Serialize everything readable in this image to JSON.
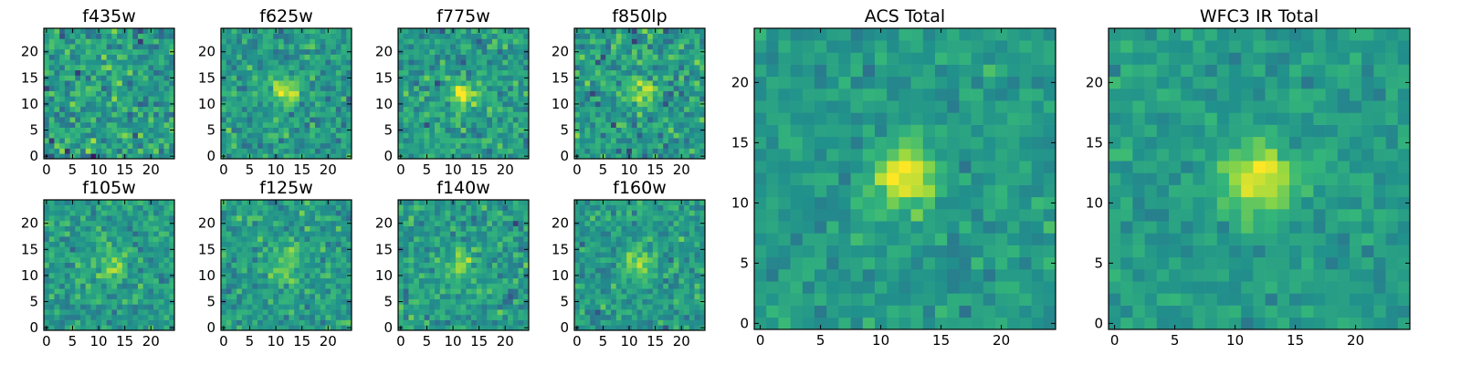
{
  "figure": {
    "colormap": [
      "#440154",
      "#31688e",
      "#21918c",
      "#35b779",
      "#90d743",
      "#fde725"
    ],
    "background": "#ffffff"
  },
  "chart_data": [
    {
      "type": "heatmap",
      "title": "f435w",
      "xlim": [
        -0.5,
        24.5
      ],
      "ylim": [
        -0.5,
        24.5
      ],
      "xticks": [
        0,
        5,
        10,
        15,
        20
      ],
      "yticks": [
        0,
        5,
        10,
        15,
        20
      ],
      "grid_size": 25,
      "source": {
        "peak": 0.05,
        "noise": 0.42,
        "sigma": 2.0
      }
    },
    {
      "type": "heatmap",
      "title": "f625w",
      "xlim": [
        -0.5,
        24.5
      ],
      "ylim": [
        -0.5,
        24.5
      ],
      "xticks": [
        0,
        5,
        10,
        15,
        20
      ],
      "yticks": [
        0,
        5,
        10,
        15,
        20
      ],
      "grid_size": 25,
      "source": {
        "peak": 0.55,
        "noise": 0.34,
        "sigma": 1.8
      }
    },
    {
      "type": "heatmap",
      "title": "f775w",
      "xlim": [
        -0.5,
        24.5
      ],
      "ylim": [
        -0.5,
        24.5
      ],
      "xticks": [
        0,
        5,
        10,
        15,
        20
      ],
      "yticks": [
        0,
        5,
        10,
        15,
        20
      ],
      "grid_size": 25,
      "source": {
        "peak": 0.55,
        "noise": 0.36,
        "sigma": 1.8
      }
    },
    {
      "type": "heatmap",
      "title": "f850lp",
      "xlim": [
        -0.5,
        24.5
      ],
      "ylim": [
        -0.5,
        24.5
      ],
      "xticks": [
        0,
        5,
        10,
        15,
        20
      ],
      "yticks": [
        0,
        5,
        10,
        15,
        20
      ],
      "grid_size": 25,
      "source": {
        "peak": 0.35,
        "noise": 0.4,
        "sigma": 2.0
      }
    },
    {
      "type": "heatmap",
      "title": "f105w",
      "xlim": [
        -0.5,
        24.5
      ],
      "ylim": [
        -0.5,
        24.5
      ],
      "xticks": [
        0,
        5,
        10,
        15,
        20
      ],
      "yticks": [
        0,
        5,
        10,
        15,
        20
      ],
      "grid_size": 25,
      "source": {
        "peak": 0.25,
        "noise": 0.3,
        "sigma": 2.5
      }
    },
    {
      "type": "heatmap",
      "title": "f125w",
      "xlim": [
        -0.5,
        24.5
      ],
      "ylim": [
        -0.5,
        24.5
      ],
      "xticks": [
        0,
        5,
        10,
        15,
        20
      ],
      "yticks": [
        0,
        5,
        10,
        15,
        20
      ],
      "grid_size": 25,
      "source": {
        "peak": 0.25,
        "noise": 0.32,
        "sigma": 2.5
      }
    },
    {
      "type": "heatmap",
      "title": "f140w",
      "xlim": [
        -0.5,
        24.5
      ],
      "ylim": [
        -0.5,
        24.5
      ],
      "xticks": [
        0,
        5,
        10,
        15,
        20
      ],
      "yticks": [
        0,
        5,
        10,
        15,
        20
      ],
      "grid_size": 25,
      "source": {
        "peak": 0.22,
        "noise": 0.34,
        "sigma": 2.2
      }
    },
    {
      "type": "heatmap",
      "title": "f160w",
      "xlim": [
        -0.5,
        24.5
      ],
      "ylim": [
        -0.5,
        24.5
      ],
      "xticks": [
        0,
        5,
        10,
        15,
        20
      ],
      "yticks": [
        0,
        5,
        10,
        15,
        20
      ],
      "grid_size": 25,
      "source": {
        "peak": 0.35,
        "noise": 0.32,
        "sigma": 2.0
      }
    },
    {
      "type": "heatmap",
      "title": "ACS Total",
      "xlim": [
        -0.5,
        24.5
      ],
      "ylim": [
        -0.5,
        24.5
      ],
      "xticks": [
        0,
        5,
        10,
        15,
        20
      ],
      "yticks": [
        0,
        5,
        10,
        15,
        20
      ],
      "grid_size": 25,
      "source": {
        "peak": 0.55,
        "noise": 0.24,
        "sigma": 1.8
      }
    },
    {
      "type": "heatmap",
      "title": "WFC3 IR Total",
      "xlim": [
        -0.5,
        24.5
      ],
      "ylim": [
        -0.5,
        24.5
      ],
      "xticks": [
        0,
        5,
        10,
        15,
        20
      ],
      "yticks": [
        0,
        5,
        10,
        15,
        20
      ],
      "grid_size": 25,
      "source": {
        "peak": 0.55,
        "noise": 0.2,
        "sigma": 2.0
      }
    }
  ]
}
